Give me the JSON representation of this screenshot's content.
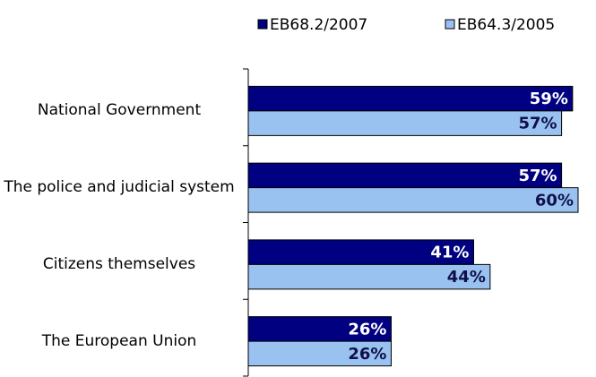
{
  "chart_data": {
    "type": "hbar",
    "categories": [
      "National Government",
      "The police and judicial system",
      "Citizens themselves",
      "The European Union"
    ],
    "series": [
      {
        "name": "EB68.2/2007",
        "color": "#000080",
        "values": [
          59,
          57,
          41,
          26
        ],
        "value_labels": [
          "59%",
          "57%",
          "41%",
          "26%"
        ]
      },
      {
        "name": "EB64.3/2005",
        "color": "#99c2f0",
        "values": [
          57,
          60,
          44,
          26
        ],
        "value_labels": [
          "57%",
          "60%",
          "44%",
          "26%"
        ]
      }
    ],
    "legend": "top-right"
  }
}
